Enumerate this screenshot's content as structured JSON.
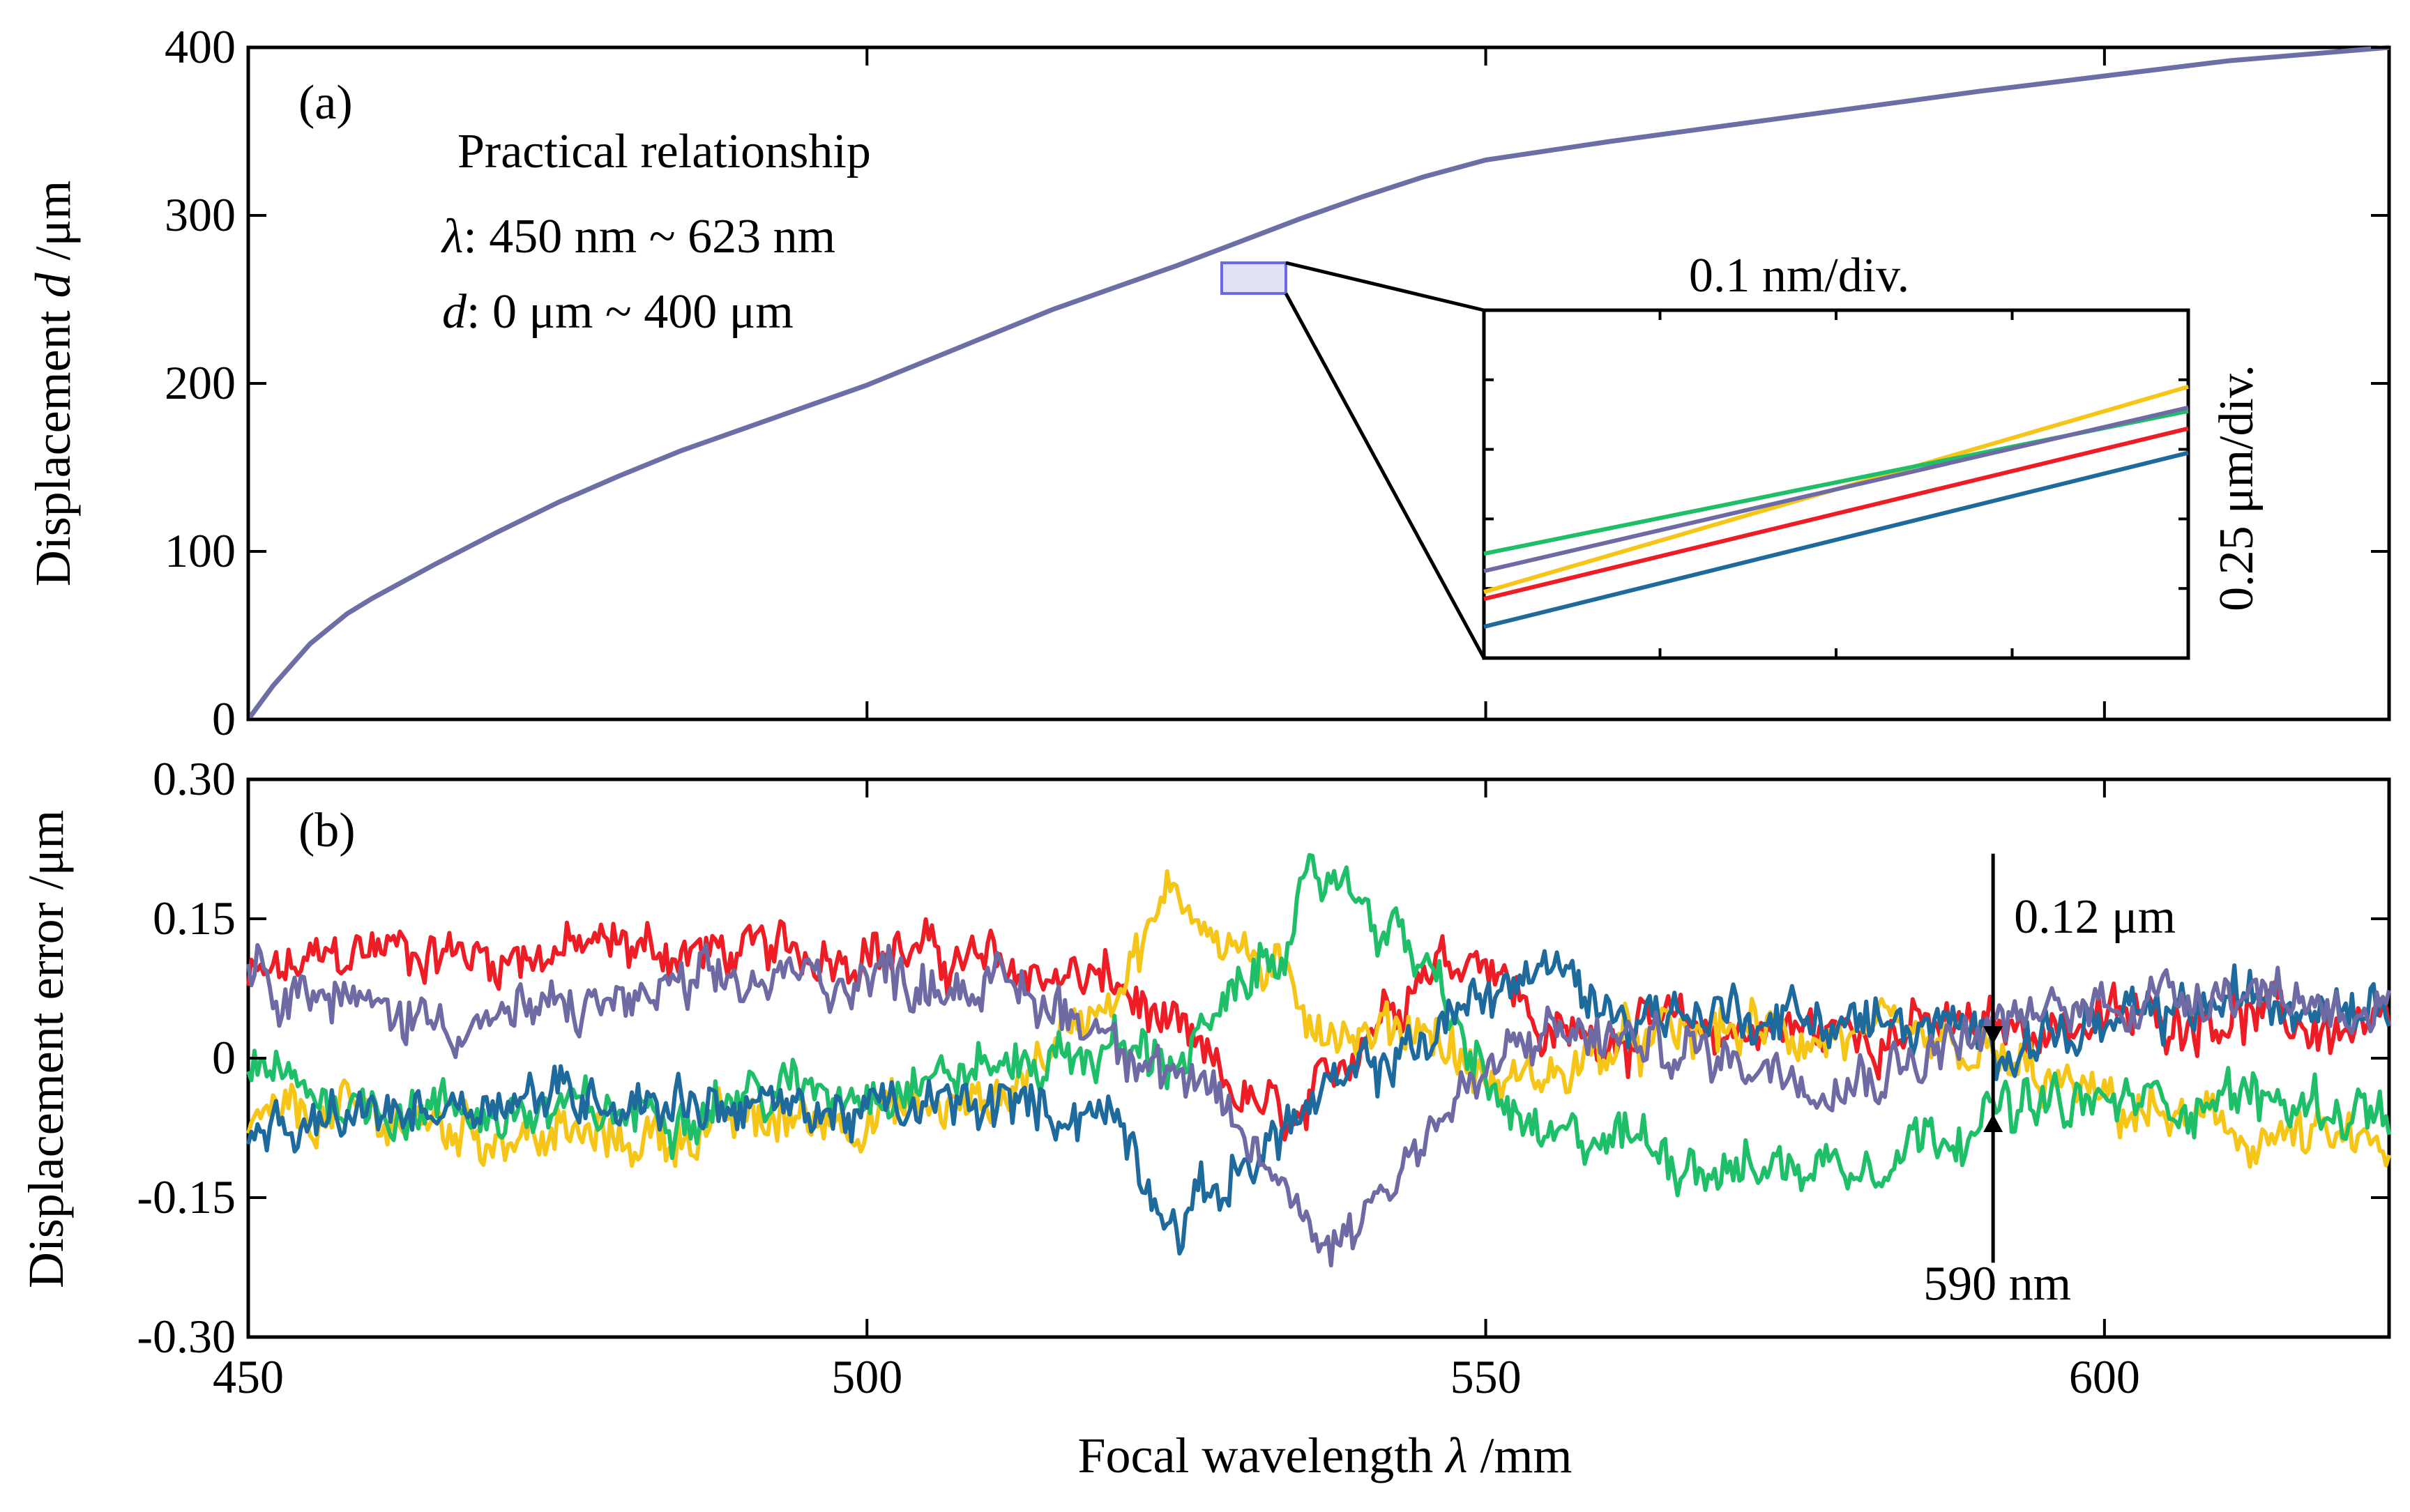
{
  "chart_data": [
    {
      "type": "line",
      "panel_label": "(a)",
      "ylabel_parts": [
        "Displacement ",
        "d",
        " /μm"
      ],
      "ylim": [
        0,
        400
      ],
      "xlim": [
        450,
        623
      ],
      "yticks": [
        "0",
        "100",
        "200",
        "300",
        "400"
      ],
      "annotations": {
        "line1": "Practical relationship",
        "line2_sym": "λ",
        "line2_rest": ": 450 nm ~ 623 nm",
        "line3_sym": "d",
        "line3_rest": ": 0 μm ~ 400 μm"
      },
      "series": [
        {
          "name": "relationship",
          "color": "#6b6fa6",
          "x": [
            450,
            452,
            455,
            458,
            460,
            465,
            470,
            475,
            480,
            485,
            490,
            495,
            500,
            505,
            510,
            515,
            520,
            525,
            530,
            535,
            540,
            545,
            550,
            560,
            570,
            580,
            590,
            600,
            610,
            623
          ],
          "y": [
            0,
            20,
            45,
            63,
            72,
            92,
            111,
            129,
            145,
            160,
            173,
            186,
            199,
            214,
            229,
            244,
            257,
            270,
            284,
            298,
            311,
            323,
            333,
            344,
            354,
            364,
            374,
            383,
            392,
            400
          ]
        }
      ],
      "inset": {
        "xlabel": "0.1 nm/div.",
        "ylabel": "0.25 μm/div.",
        "series": [
          {
            "name": "yellow",
            "color": "#f5c518",
            "y0": 0.19,
            "y1": 0.78
          },
          {
            "name": "green",
            "color": "#1fbf6a",
            "y0": 0.3,
            "y1": 0.71
          },
          {
            "name": "purple",
            "color": "#6e6aa4",
            "y0": 0.25,
            "y1": 0.72
          },
          {
            "name": "red",
            "color": "#ee1c24",
            "y0": 0.17,
            "y1": 0.66
          },
          {
            "name": "blue",
            "color": "#1f6a9c",
            "y0": 0.09,
            "y1": 0.59
          }
        ]
      }
    },
    {
      "type": "line",
      "panel_label": "(b)",
      "ylabel": "Displacement error /μm",
      "ylim": [
        -0.3,
        0.3
      ],
      "xlim": [
        450,
        623
      ],
      "yticks": [
        "-0.30",
        "-0.15",
        "0",
        "0.15",
        "0.30"
      ],
      "xticks": [
        "450",
        "500",
        "550",
        "600"
      ],
      "xlabel_parts": [
        "Focal wavelength ",
        "λ",
        " /mm"
      ],
      "marker": {
        "x": 591,
        "y_top": 0.015,
        "y_bottom": -0.06,
        "top_label": "0.12 μm",
        "bottom_label": "590 nm"
      },
      "series": [
        {
          "name": "red",
          "color": "#ee1c24",
          "x": [
            450,
            460,
            470,
            480,
            490,
            500,
            510,
            520,
            525,
            530,
            535,
            540,
            545,
            550,
            555,
            560,
            570,
            580,
            590,
            600,
            610,
            623
          ],
          "y": [
            0.08,
            0.12,
            0.11,
            0.12,
            0.11,
            0.12,
            0.1,
            0.08,
            0.02,
            -0.04,
            -0.08,
            0.03,
            0.1,
            0.12,
            0.02,
            0.03,
            0.03,
            0.03,
            0.03,
            0.04,
            0.05,
            0.02
          ]
        },
        {
          "name": "yellow",
          "color": "#f5c518",
          "x": [
            450,
            460,
            470,
            480,
            490,
            500,
            510,
            520,
            525,
            530,
            535,
            540,
            545,
            550,
            555,
            560,
            570,
            580,
            590,
            600,
            610,
            623
          ],
          "y": [
            -0.07,
            -0.06,
            -0.08,
            -0.09,
            -0.07,
            -0.06,
            -0.05,
            0.08,
            0.18,
            0.12,
            0.06,
            0.02,
            0.04,
            -0.03,
            -0.02,
            0.01,
            0.03,
            0.02,
            0.0,
            -0.05,
            -0.08,
            -0.1
          ]
        },
        {
          "name": "green",
          "color": "#1fbf6a",
          "x": [
            450,
            460,
            470,
            480,
            490,
            500,
            510,
            520,
            525,
            530,
            535,
            538,
            545,
            550,
            555,
            560,
            570,
            580,
            590,
            600,
            610,
            623
          ],
          "y": [
            -0.02,
            -0.05,
            -0.06,
            -0.06,
            -0.04,
            -0.03,
            -0.01,
            0.01,
            0.0,
            0.06,
            0.16,
            0.2,
            0.1,
            -0.03,
            -0.1,
            -0.08,
            -0.12,
            -0.11,
            -0.06,
            -0.05,
            -0.04,
            -0.06
          ]
        },
        {
          "name": "blue",
          "color": "#1f6a9c",
          "x": [
            450,
            460,
            470,
            480,
            490,
            500,
            510,
            520,
            525,
            530,
            535,
            540,
            545,
            550,
            555,
            560,
            570,
            580,
            590,
            600,
            610,
            623
          ],
          "y": [
            -0.1,
            -0.06,
            -0.04,
            -0.04,
            -0.05,
            -0.06,
            -0.05,
            -0.06,
            -0.18,
            -0.12,
            -0.06,
            -0.02,
            0.02,
            0.07,
            0.1,
            0.05,
            0.05,
            0.04,
            0.02,
            0.03,
            0.06,
            0.07
          ]
        },
        {
          "name": "purple",
          "color": "#6e6aa4",
          "x": [
            450,
            460,
            470,
            480,
            490,
            500,
            510,
            520,
            525,
            530,
            535,
            538,
            545,
            550,
            555,
            560,
            570,
            580,
            590,
            600,
            610,
            623
          ],
          "y": [
            0.1,
            0.05,
            0.04,
            0.06,
            0.08,
            0.09,
            0.08,
            0.03,
            -0.02,
            -0.08,
            -0.16,
            -0.2,
            -0.08,
            -0.02,
            0.03,
            0.02,
            0.0,
            -0.02,
            0.03,
            0.06,
            0.08,
            0.05
          ]
        }
      ]
    }
  ]
}
